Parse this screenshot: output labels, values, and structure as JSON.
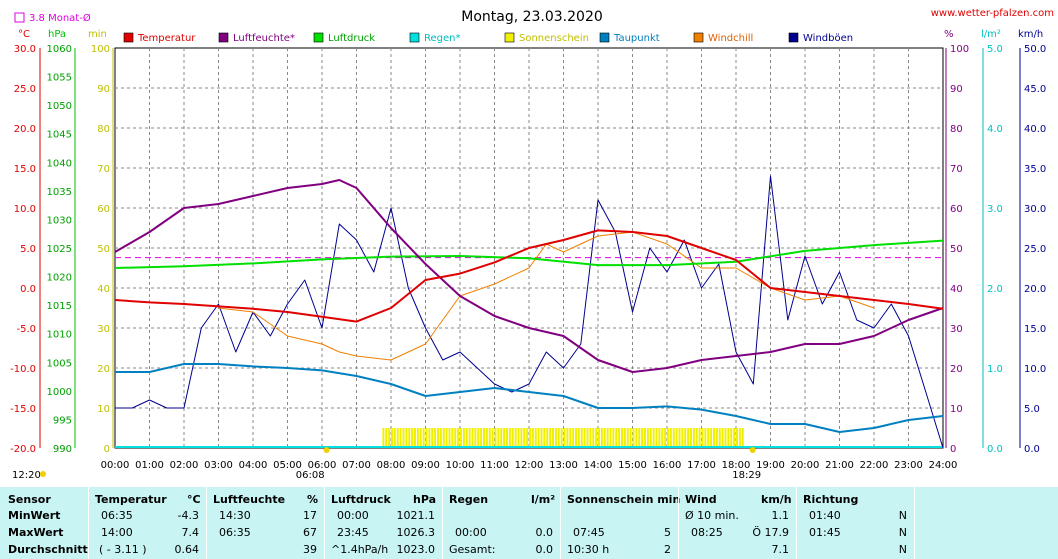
{
  "chart_data": {
    "type": "line",
    "title": "Montag, 23.03.2020",
    "source": "www.wetter-pfalzen.com",
    "mean_label": "3.8 Monat-Ø",
    "mean_value": 3.8,
    "colors": {
      "Temperatur": "#e00000",
      "Luftfeuchte": "#800080",
      "Luftdruck": "#00e000",
      "Regen": "#00e0e0",
      "Sonnenschein": "#f0f000",
      "Taupunkt": "#0080c0",
      "Windchill": "#f08000",
      "Windboeen": "#000090",
      "mean": "#e000e0"
    },
    "legend": [
      "Temperatur",
      "Luftfeuchte*",
      "Luftdruck",
      "Regen*",
      "Sonnenschein",
      "Taupunkt",
      "Windchill",
      "Windböen"
    ],
    "axes": {
      "temp": {
        "unit": "°C",
        "ylim": [
          -20,
          30
        ],
        "ticks": [
          "30.0",
          "25.0",
          "20.0",
          "15.0",
          "10.0",
          "5.0",
          "0.0",
          "-5.0",
          "-10.0",
          "-15.0",
          "-20.0"
        ]
      },
      "pressure": {
        "unit": "hPa",
        "ylim": [
          990,
          1060
        ],
        "ticks": [
          "1060",
          "1055",
          "1050",
          "1045",
          "1040",
          "1035",
          "1030",
          "1025",
          "1020",
          "1015",
          "1010",
          "1005",
          "1000",
          "995",
          "990"
        ]
      },
      "sun": {
        "unit": "min",
        "ylim": [
          0,
          100
        ],
        "ticks": [
          "100",
          "90",
          "80",
          "70",
          "60",
          "50",
          "40",
          "30",
          "20",
          "10",
          "0"
        ]
      },
      "humidity": {
        "unit": "%",
        "ylim": [
          0,
          100
        ],
        "ticks": [
          "100",
          "90",
          "80",
          "70",
          "60",
          "50",
          "40",
          "30",
          "20",
          "10",
          "0"
        ]
      },
      "rain": {
        "unit": "l/m²",
        "ylim": [
          0,
          5
        ],
        "ticks": [
          "5.0",
          "4.0",
          "3.0",
          "2.0",
          "1.0",
          "0.0"
        ]
      },
      "wind": {
        "unit": "km/h",
        "ylim": [
          0,
          50
        ],
        "ticks": [
          "50.0",
          "45.0",
          "40.0",
          "35.0",
          "30.0",
          "25.0",
          "20.0",
          "15.0",
          "10.0",
          "5.0",
          "0.0"
        ]
      }
    },
    "x_ticks": [
      "00:00",
      "01:00",
      "02:00",
      "03:00",
      "04:00",
      "05:00",
      "06:00",
      "07:00",
      "08:00",
      "09:00",
      "10:00",
      "11:00",
      "12:00",
      "13:00",
      "14:00",
      "15:00",
      "16:00",
      "17:00",
      "18:00",
      "19:00",
      "20:00",
      "21:00",
      "22:00",
      "23:00",
      "24:00"
    ],
    "sun_events": {
      "sunrise": "06:08",
      "sunset": "18:29",
      "day_length": "12:20"
    },
    "sunshine_period": [
      "07:45",
      "18:15"
    ],
    "series": [
      {
        "name": "Temperatur",
        "axis": "temp",
        "x": [
          0,
          1,
          2,
          3,
          4,
          5,
          6,
          7,
          8,
          9,
          10,
          11,
          12,
          13,
          14,
          15,
          16,
          17,
          18,
          19,
          20,
          21,
          22,
          23,
          24
        ],
        "y": [
          -1.5,
          -1.8,
          -2.0,
          -2.3,
          -2.6,
          -3.0,
          -3.6,
          -4.2,
          -2.5,
          1.0,
          1.8,
          3.2,
          5.0,
          6.0,
          7.2,
          7.0,
          6.5,
          5.0,
          3.5,
          0.0,
          -0.5,
          -1.0,
          -1.5,
          -2.0,
          -2.6
        ]
      },
      {
        "name": "Luftfeuchte",
        "axis": "humidity",
        "x": [
          0,
          1,
          2,
          3,
          4,
          5,
          6,
          6.5,
          7,
          8,
          9,
          10,
          11,
          12,
          13,
          14,
          15,
          16,
          17,
          18,
          19,
          20,
          21,
          22,
          23,
          24
        ],
        "y": [
          49,
          54,
          60,
          61,
          63,
          65,
          66,
          67,
          65,
          55,
          46,
          38,
          33,
          30,
          28,
          22,
          19,
          20,
          22,
          23,
          24,
          26,
          26,
          28,
          32,
          35
        ]
      },
      {
        "name": "Luftdruck",
        "axis": "pressure",
        "x": [
          0,
          2,
          4,
          6,
          8,
          10,
          12,
          14,
          16,
          18,
          20,
          22,
          24
        ],
        "y": [
          1021.5,
          1021.8,
          1022.3,
          1023,
          1023.5,
          1023.6,
          1023.2,
          1022,
          1022,
          1022.6,
          1024.5,
          1025.5,
          1026.3
        ]
      },
      {
        "name": "Taupunkt",
        "axis": "temp",
        "x": [
          0,
          1,
          2,
          3,
          4,
          5,
          6,
          7,
          8,
          9,
          10,
          11,
          12,
          13,
          14,
          15,
          16,
          17,
          18,
          19,
          20,
          21,
          22,
          23,
          24
        ],
        "y": [
          -10.5,
          -10.5,
          -9.5,
          -9.5,
          -9.8,
          -10.0,
          -10.3,
          -11.0,
          -12.0,
          -13.5,
          -13.0,
          -12.5,
          -13.0,
          -13.5,
          -15.0,
          -15.0,
          -14.8,
          -15.2,
          -16.0,
          -17.0,
          -17.0,
          -18.0,
          -17.5,
          -16.5,
          -16.0
        ]
      },
      {
        "name": "Windchill",
        "axis": "temp",
        "x": [
          3,
          4,
          5,
          6,
          6.5,
          7,
          8,
          9,
          10,
          11,
          12,
          12.5,
          13,
          14,
          15,
          16,
          17,
          18,
          19,
          20,
          21,
          22
        ],
        "y": [
          -2.5,
          -3.0,
          -6.0,
          -7.0,
          -8.0,
          -8.5,
          -9.0,
          -7.0,
          -1.0,
          0.5,
          2.5,
          5.5,
          4.5,
          6.5,
          7.0,
          5.5,
          2.5,
          2.5,
          0.0,
          -1.5,
          -1.0,
          -2.5
        ]
      },
      {
        "name": "Windböen",
        "axis": "wind",
        "x": [
          0,
          0.5,
          1,
          1.5,
          2,
          2.5,
          3,
          3.5,
          4,
          4.5,
          5,
          5.5,
          6,
          6.5,
          7,
          7.5,
          8,
          8.5,
          9,
          9.5,
          10,
          10.5,
          11,
          11.5,
          12,
          12.5,
          13,
          13.5,
          14,
          14.5,
          15,
          15.5,
          16,
          16.5,
          17,
          17.5,
          18,
          18.5,
          19,
          19.5,
          20,
          20.5,
          21,
          21.5,
          22,
          22.5,
          23,
          23.5,
          24
        ],
        "y": [
          5,
          5,
          6,
          5,
          5,
          15,
          18,
          12,
          17,
          14,
          18,
          21,
          15,
          28,
          26,
          22,
          30,
          20,
          15,
          11,
          12,
          10,
          8,
          7,
          8,
          12,
          10,
          13,
          31,
          27,
          17,
          25,
          22,
          26,
          20,
          23,
          12,
          8,
          34,
          16,
          24,
          18,
          22,
          16,
          15,
          18,
          14,
          7,
          0
        ]
      },
      {
        "name": "Sonnenschein",
        "axis": "sun",
        "x": [
          7.75,
          18.25
        ],
        "y": [
          5,
          5
        ]
      },
      {
        "name": "Regen",
        "axis": "rain",
        "x": [
          0,
          24
        ],
        "y": [
          0,
          0
        ]
      }
    ]
  },
  "table": {
    "headers": {
      "sensor": "Sensor",
      "temperatur": "Temperatur",
      "temp_unit": "°C",
      "luftfeuchte": "Luftfeuchte",
      "hum_unit": "%",
      "luftdruck": "Luftdruck",
      "press_unit": "hPa",
      "regen": "Regen",
      "rain_unit": "l/m²",
      "sonnenschein": "Sonnenschein min",
      "wind": "Wind",
      "wind_unit": "km/h",
      "richtung": "Richtung"
    },
    "rows": [
      {
        "label": "MinWert",
        "temp_time": "06:35",
        "temp_val": "-4.3",
        "hum_time": "14:30",
        "hum_val": "17",
        "press_time": "00:00",
        "press_val": "1021.1",
        "rain_time": "",
        "rain_val": "",
        "sun_time": "",
        "sun_val": "",
        "wind_time": "Ø 10 min.",
        "wind_val": "1.1",
        "dir_time": "01:40",
        "dir_val": "N"
      },
      {
        "label": "MaxWert",
        "temp_time": "14:00",
        "temp_val": "7.4",
        "hum_time": "06:35",
        "hum_val": "67",
        "press_time": "23:45",
        "press_val": "1026.3",
        "rain_time": "00:00",
        "rain_val": "0.0",
        "sun_time": "07:45",
        "sun_val": "5",
        "wind_time": "08:25",
        "wind_val": "Ö 17.9",
        "dir_time": "01:45",
        "dir_val": "N"
      },
      {
        "label": "Durchschnitt",
        "temp_time": "( - 3.11 )",
        "temp_val": "0.64",
        "hum_time": "",
        "hum_val": "39",
        "press_time": "^1.4hPa/h",
        "press_val": "1023.0",
        "rain_time": "Gesamt:",
        "rain_val": "0.0",
        "sun_time": "10:30 h",
        "sun_val": "2",
        "wind_time": "",
        "wind_val": "7.1",
        "dir_time": "",
        "dir_val": "N"
      }
    ]
  }
}
